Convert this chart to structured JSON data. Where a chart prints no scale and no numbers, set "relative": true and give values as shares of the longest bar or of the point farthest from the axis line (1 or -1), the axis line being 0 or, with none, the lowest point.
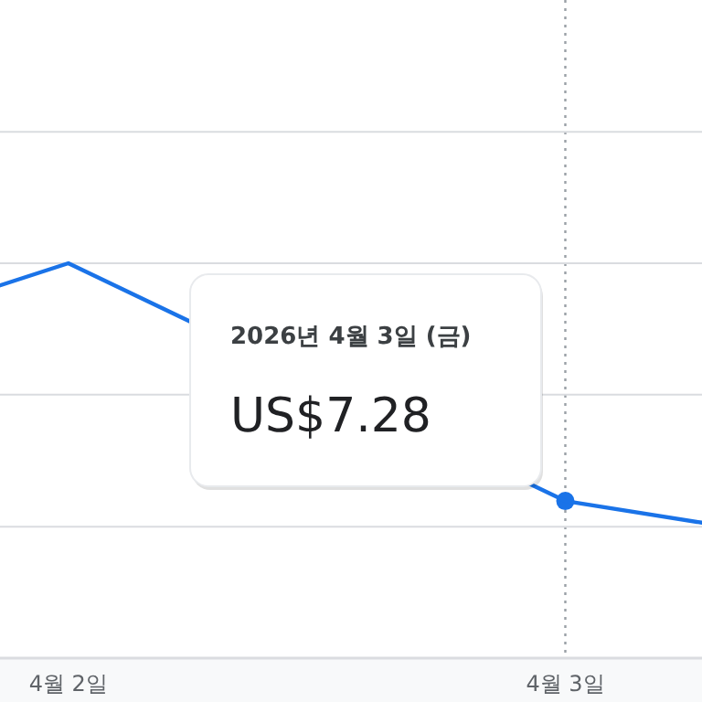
{
  "chart_data": {
    "type": "line",
    "relative": true,
    "x": [
      "2026-04-01T20:42",
      "2026-04-02",
      "2026-04-03",
      "2026-04-03T06:36"
    ],
    "xlim": [
      "2026-04-01T20:42",
      "2026-04-03T06:36"
    ],
    "xticks": [
      {
        "value": "2026-04-02",
        "label": "4월 2일"
      },
      {
        "value": "2026-04-03",
        "label": "4월 3일"
      }
    ],
    "series": [
      {
        "color": "#1a73e8",
        "values": [
          0.944,
          1,
          0.398,
          0.343
        ]
      }
    ],
    "ref_lines": [
      {
        "axis": "x",
        "value": "2026-04-03",
        "line_style": "dotted",
        "color": "#9aa0a6"
      },
      {
        "axis": "y",
        "value": 0.333,
        "color": "#dadce0"
      },
      {
        "axis": "y",
        "value": 0.667,
        "color": "#dadce0"
      },
      {
        "axis": "y",
        "value": 1,
        "color": "#dadce0"
      },
      {
        "axis": "y",
        "value": 1.333,
        "color": "#dadce0"
      }
    ],
    "annotations": [
      "2026년 4월 3일 (금)",
      "US$7.28"
    ]
  }
}
